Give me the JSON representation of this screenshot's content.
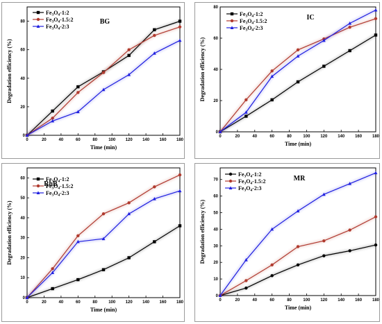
{
  "chart_data": [
    {
      "type": "line",
      "title": "BG",
      "xlabel": "Time (min)",
      "ylabel": "Degradation efficiency (%)",
      "xlim": [
        0,
        180
      ],
      "ylim": [
        0,
        90
      ],
      "xticks": [
        0,
        20,
        40,
        60,
        80,
        100,
        120,
        140,
        160,
        180
      ],
      "yticks": [
        0,
        20,
        40,
        60,
        80
      ],
      "legend_position": "top-left",
      "x": [
        0,
        30,
        60,
        90,
        120,
        150,
        180
      ],
      "series": [
        {
          "name": "Fe3O4-1:2",
          "label_main": "Fe",
          "label_sub1": "3",
          "label_mid": "O",
          "label_sub2": "4",
          "label_tail": "-1:2",
          "color": "#000000",
          "marker": "square",
          "values": [
            0,
            17,
            34,
            44.5,
            56,
            74,
            80
          ]
        },
        {
          "name": "Fe3O4-1.5:2",
          "label_main": "Fe",
          "label_sub1": "3",
          "label_mid": "O",
          "label_sub2": "4",
          "label_tail": "-1.5:2",
          "color": "#b03a2e",
          "marker": "circle",
          "values": [
            0,
            12,
            30,
            44,
            60,
            70,
            76
          ]
        },
        {
          "name": "Fe3O4-2:3",
          "label_main": "Fe",
          "label_sub1": "3",
          "label_mid": "O",
          "label_sub2": "4",
          "label_tail": "-2:3",
          "color": "#1f1fe0",
          "marker": "triangle",
          "values": [
            0,
            10,
            16.5,
            32,
            42.5,
            57.5,
            66.5
          ]
        }
      ]
    },
    {
      "type": "line",
      "title": "IC",
      "xlabel": "Time (min)",
      "ylabel": "Degradation efficiency (%)",
      "xlim": [
        0,
        180
      ],
      "ylim": [
        0,
        80
      ],
      "xticks": [
        0,
        20,
        40,
        60,
        80,
        100,
        120,
        140,
        160,
        180
      ],
      "yticks": [
        0,
        20,
        40,
        60,
        80
      ],
      "legend_position": "top-left",
      "x": [
        0,
        30,
        60,
        90,
        120,
        150,
        180
      ],
      "series": [
        {
          "name": "Fe3O4-1:2",
          "label_main": "Fe",
          "label_sub1": "3",
          "label_mid": "O",
          "label_sub2": "4",
          "label_tail": "-1:2",
          "color": "#000000",
          "marker": "square",
          "values": [
            0,
            10,
            20.5,
            32,
            42,
            52,
            62
          ]
        },
        {
          "name": "Fe3O4-1.5:2",
          "label_main": "Fe",
          "label_sub1": "3",
          "label_mid": "O",
          "label_sub2": "4",
          "label_tail": "-1.5:2",
          "color": "#b03a2e",
          "marker": "circle",
          "values": [
            0,
            20.5,
            39,
            52.5,
            59.5,
            67,
            72.5
          ]
        },
        {
          "name": "Fe3O4-2:3",
          "label_main": "Fe",
          "label_sub1": "3",
          "label_mid": "O",
          "label_sub2": "4",
          "label_tail": "-2:3",
          "color": "#1f1fe0",
          "marker": "triangle",
          "values": [
            0,
            12.5,
            35.5,
            48.5,
            58.5,
            69.5,
            78
          ]
        }
      ]
    },
    {
      "type": "line",
      "title": "RhB",
      "xlabel": "Time (min)",
      "ylabel": "Degradation efficiency (%)",
      "xlim": [
        0,
        180
      ],
      "ylim": [
        0,
        65
      ],
      "xticks": [
        0,
        20,
        40,
        60,
        80,
        100,
        120,
        140,
        160,
        180
      ],
      "yticks": [
        0,
        10,
        20,
        30,
        40,
        50,
        60
      ],
      "legend_position": "top-left",
      "x": [
        0,
        30,
        60,
        90,
        120,
        150,
        180
      ],
      "series": [
        {
          "name": "Fe3O4-1:2",
          "label_main": "Fe",
          "label_sub1": "3",
          "label_mid": "O",
          "label_sub2": "4",
          "label_tail": "-1:2",
          "color": "#000000",
          "marker": "square",
          "values": [
            0,
            4.5,
            9,
            14,
            20,
            28,
            36
          ]
        },
        {
          "name": "Fe3O4-1.5:2",
          "label_main": "Fe",
          "label_sub1": "3",
          "label_mid": "O",
          "label_sub2": "4",
          "label_tail": "-1.5:2",
          "color": "#b03a2e",
          "marker": "circle",
          "values": [
            0,
            14.5,
            31,
            42,
            47.5,
            55.5,
            61.5
          ]
        },
        {
          "name": "Fe3O4-2:3",
          "label_main": "Fe",
          "label_sub1": "3",
          "label_mid": "O",
          "label_sub2": "4",
          "label_tail": "-2:3",
          "color": "#1f1fe0",
          "marker": "triangle",
          "values": [
            0,
            12.5,
            28,
            29.5,
            42,
            49.5,
            53.5
          ]
        }
      ]
    },
    {
      "type": "line",
      "title": "MR",
      "xlabel": "Time (min)",
      "ylabel": "Degradation efficiency (%)",
      "xlim": [
        0,
        180
      ],
      "ylim": [
        0,
        77
      ],
      "xticks": [
        0,
        20,
        40,
        60,
        80,
        100,
        120,
        140,
        160,
        180
      ],
      "yticks": [
        0,
        10,
        20,
        30,
        40,
        50,
        60,
        70
      ],
      "legend_position": "top-left",
      "x": [
        0,
        30,
        60,
        90,
        120,
        150,
        180
      ],
      "series": [
        {
          "name": "Fe3O4-1:2",
          "label_main": "Fe",
          "label_sub1": "3",
          "label_mid": "O",
          "label_sub2": "4",
          "label_tail": "-1:2",
          "color": "#000000",
          "marker": "circle",
          "values": [
            0,
            4.5,
            12,
            18.5,
            24,
            27,
            30.5
          ]
        },
        {
          "name": "Fe3O4-1.5:2",
          "label_main": "Fe",
          "label_sub1": "3",
          "label_mid": "O",
          "label_sub2": "4",
          "label_tail": "-1.5:2",
          "color": "#b03a2e",
          "marker": "circle",
          "values": [
            0,
            9,
            18.5,
            29.5,
            33,
            39.5,
            47.5
          ]
        },
        {
          "name": "Fe3O4-2:3",
          "label_main": "Fe",
          "label_sub1": "3",
          "label_mid": "O",
          "label_sub2": "4",
          "label_tail": "-2:3",
          "color": "#1f1fe0",
          "marker": "triangle",
          "values": [
            0,
            21.5,
            40,
            51,
            61,
            67.5,
            74
          ]
        }
      ]
    }
  ]
}
